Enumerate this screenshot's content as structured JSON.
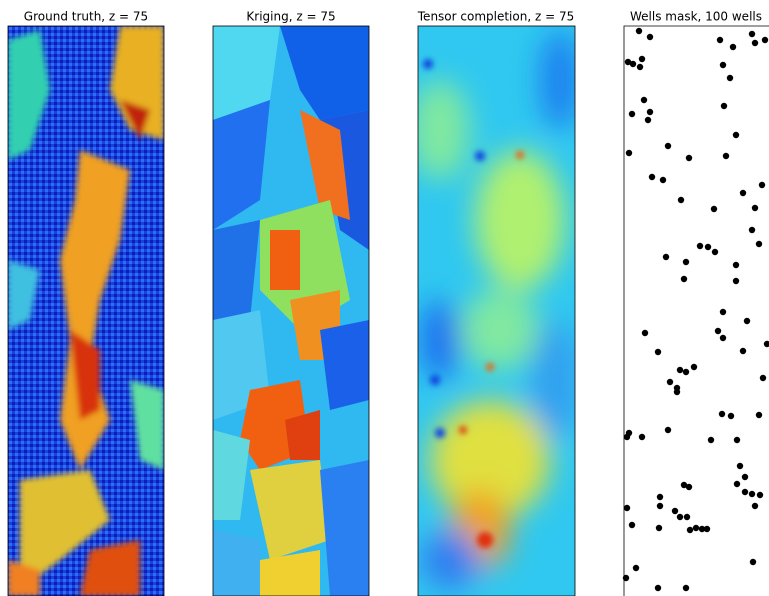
{
  "panels": [
    {
      "title": "Ground truth, z = 75"
    },
    {
      "title": "Kriging, z = 75"
    },
    {
      "title": "Tensor completion, z = 75"
    },
    {
      "title": "Wells mask, 100 wells"
    }
  ]
}
